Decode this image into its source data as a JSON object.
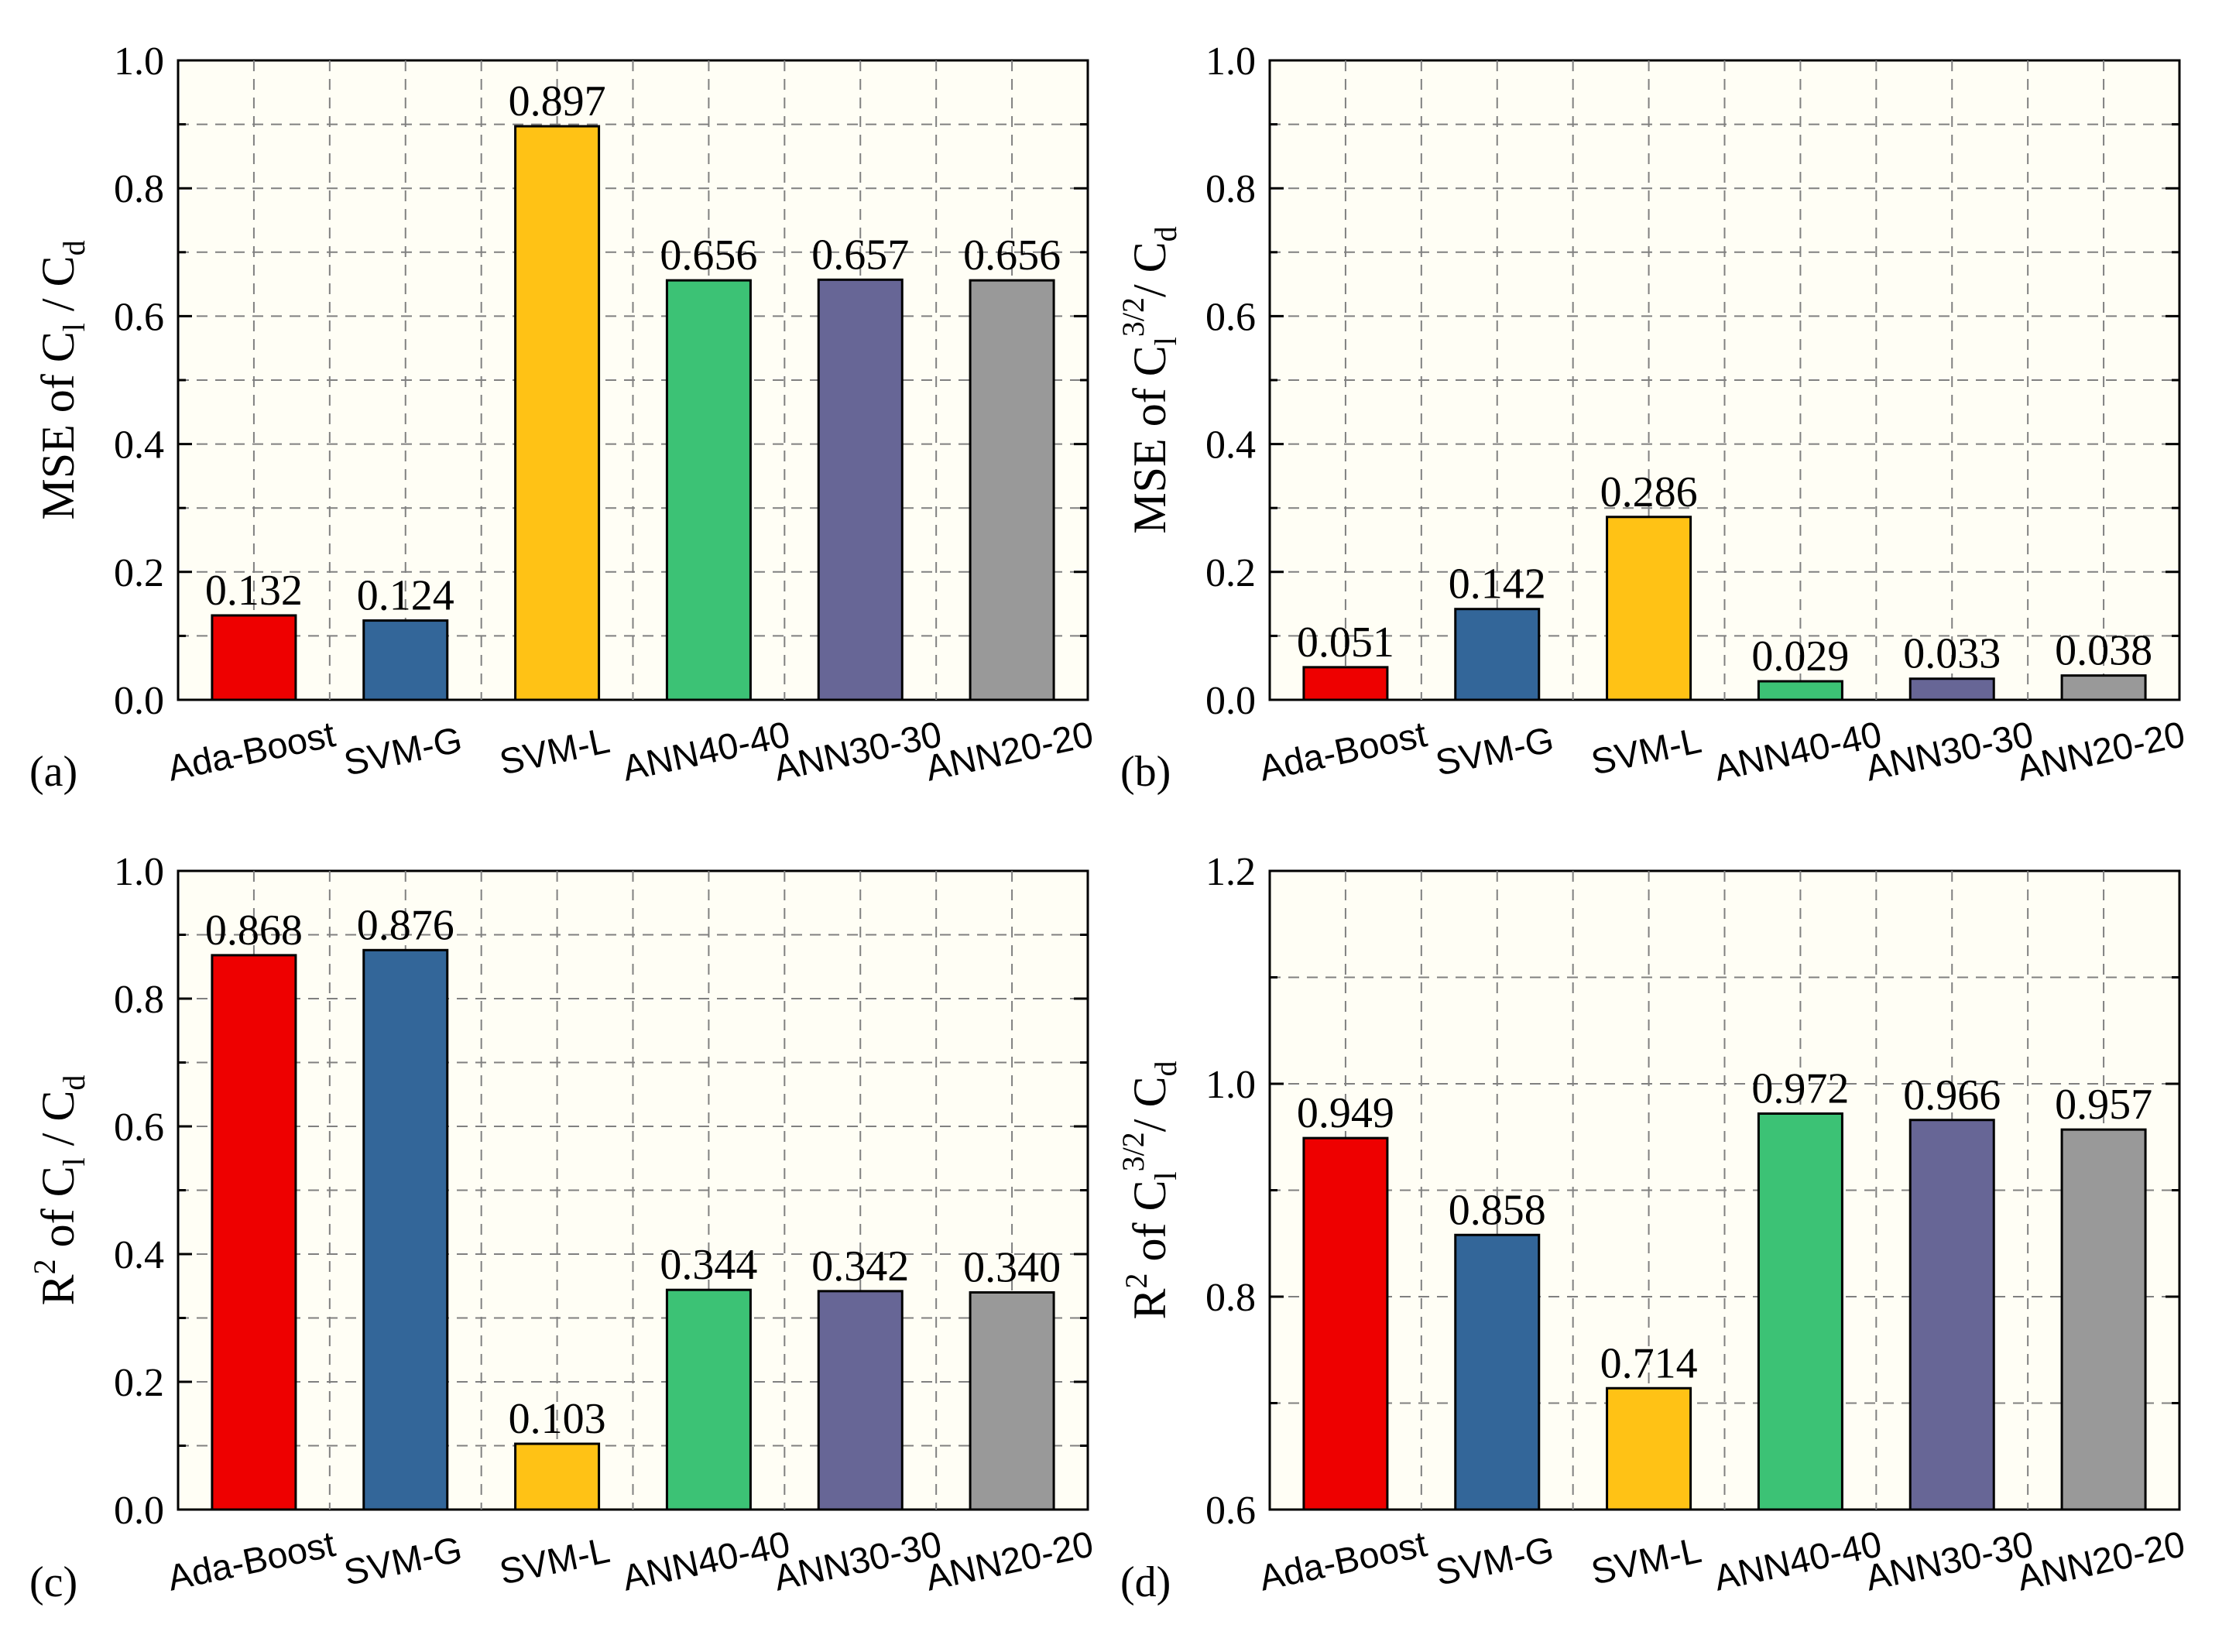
{
  "figure": {
    "bar_colors": [
      "#ee0000",
      "#336699",
      "#ffc215",
      "#3cc275",
      "#676696",
      "#999999"
    ],
    "panel_background": "#fffef5"
  },
  "chart_data": [
    {
      "type": "bar",
      "panel_label": "(a)",
      "categories": [
        "Ada-Boost",
        "SVM-G",
        "SVM-L",
        "ANN40-40",
        "ANN30-30",
        "ANN20-20"
      ],
      "values": [
        0.132,
        0.124,
        0.897,
        0.656,
        0.657,
        0.656
      ],
      "value_labels": [
        "0.132",
        "0.124",
        "0.897",
        "0.656",
        "0.657",
        "0.656"
      ],
      "ylabel": {
        "prefix": "MSE of C",
        "sub1": "l",
        "sup": "",
        "mid": " / C",
        "sub2": "d"
      },
      "ylim": [
        0.0,
        1.0
      ],
      "yticks": [
        0.0,
        0.2,
        0.4,
        0.6,
        0.8,
        1.0
      ],
      "ytick_labels": [
        "0.0",
        "0.2",
        "0.4",
        "0.6",
        "0.8",
        "1.0"
      ],
      "grid": true
    },
    {
      "type": "bar",
      "panel_label": "(b)",
      "categories": [
        "Ada-Boost",
        "SVM-G",
        "SVM-L",
        "ANN40-40",
        "ANN30-30",
        "ANN20-20"
      ],
      "values": [
        0.051,
        0.142,
        0.286,
        0.029,
        0.033,
        0.038
      ],
      "value_labels": [
        "0.051",
        "0.142",
        "0.286",
        "0.029",
        "0.033",
        "0.038"
      ],
      "ylabel": {
        "prefix": "MSE of C",
        "sub1": "l",
        "sup": "3/2",
        "mid": "/ C",
        "sub2": "d"
      },
      "ylim": [
        0.0,
        1.0
      ],
      "yticks": [
        0.0,
        0.2,
        0.4,
        0.6,
        0.8,
        1.0
      ],
      "ytick_labels": [
        "0.0",
        "0.2",
        "0.4",
        "0.6",
        "0.8",
        "1.0"
      ],
      "grid": true
    },
    {
      "type": "bar",
      "panel_label": "(c)",
      "categories": [
        "Ada-Boost",
        "SVM-G",
        "SVM-L",
        "ANN40-40",
        "ANN30-30",
        "ANN20-20"
      ],
      "values": [
        0.868,
        0.876,
        0.103,
        0.344,
        0.342,
        0.34
      ],
      "value_labels": [
        "0.868",
        "0.876",
        "0.103",
        "0.344",
        "0.342",
        "0.340"
      ],
      "ylabel": {
        "prefix": "R",
        "sup0": "2",
        "after0": " of C",
        "sub1": "l",
        "sup": "",
        "mid": " / C",
        "sub2": "d"
      },
      "ylim": [
        0.0,
        1.0
      ],
      "yticks": [
        0.0,
        0.2,
        0.4,
        0.6,
        0.8,
        1.0
      ],
      "ytick_labels": [
        "0.0",
        "0.2",
        "0.4",
        "0.6",
        "0.8",
        "1.0"
      ],
      "grid": true
    },
    {
      "type": "bar",
      "panel_label": "(d)",
      "categories": [
        "Ada-Boost",
        "SVM-G",
        "SVM-L",
        "ANN40-40",
        "ANN30-30",
        "ANN20-20"
      ],
      "values": [
        0.949,
        0.858,
        0.714,
        0.972,
        0.966,
        0.957
      ],
      "value_labels": [
        "0.949",
        "0.858",
        "0.714",
        "0.972",
        "0.966",
        "0.957"
      ],
      "ylabel": {
        "prefix": "R",
        "sup0": "2",
        "after0": " of C",
        "sub1": "l",
        "sup": "3/2",
        "mid": "/ C",
        "sub2": "d"
      },
      "ylim": [
        0.6,
        1.2
      ],
      "yticks": [
        0.6,
        0.8,
        1.0,
        1.2
      ],
      "ytick_labels": [
        "0.6",
        "0.8",
        "1.0",
        "1.2"
      ],
      "minor_yticks": [
        0.7,
        0.9,
        1.1
      ],
      "grid": true
    }
  ]
}
